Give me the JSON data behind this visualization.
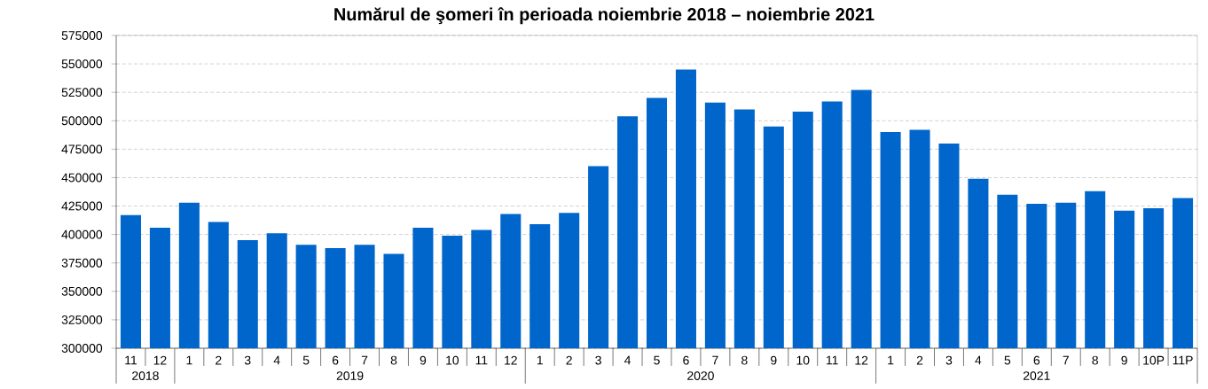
{
  "chart_data": {
    "type": "bar",
    "title": "Numărul de şomeri în perioada noiembrie 2018 – noiembrie 2021",
    "categories": [
      "11",
      "12",
      "1",
      "2",
      "3",
      "4",
      "5",
      "6",
      "7",
      "8",
      "9",
      "10",
      "11",
      "12",
      "1",
      "2",
      "3",
      "4",
      "5",
      "6",
      "7",
      "8",
      "9",
      "10",
      "11",
      "12",
      "1",
      "2",
      "3",
      "4",
      "5",
      "6",
      "7",
      "8",
      "9",
      "10P",
      "11P"
    ],
    "values": [
      417000,
      406000,
      428000,
      411000,
      395000,
      401000,
      391000,
      388000,
      391000,
      383000,
      406000,
      399000,
      404000,
      418000,
      409000,
      419000,
      460000,
      504000,
      520000,
      545000,
      516000,
      510000,
      495000,
      508000,
      517000,
      527000,
      490000,
      492000,
      480000,
      449000,
      435000,
      427000,
      428000,
      438000,
      421000,
      423000,
      432000
    ],
    "color": "#0066cc",
    "ylim": [
      300000,
      575000
    ],
    "yticks": [
      300000,
      325000,
      350000,
      375000,
      400000,
      425000,
      450000,
      475000,
      500000,
      525000,
      550000,
      575000
    ],
    "grid": "y",
    "annotations": [
      "2018",
      "2019",
      "2020",
      "2021"
    ]
  }
}
